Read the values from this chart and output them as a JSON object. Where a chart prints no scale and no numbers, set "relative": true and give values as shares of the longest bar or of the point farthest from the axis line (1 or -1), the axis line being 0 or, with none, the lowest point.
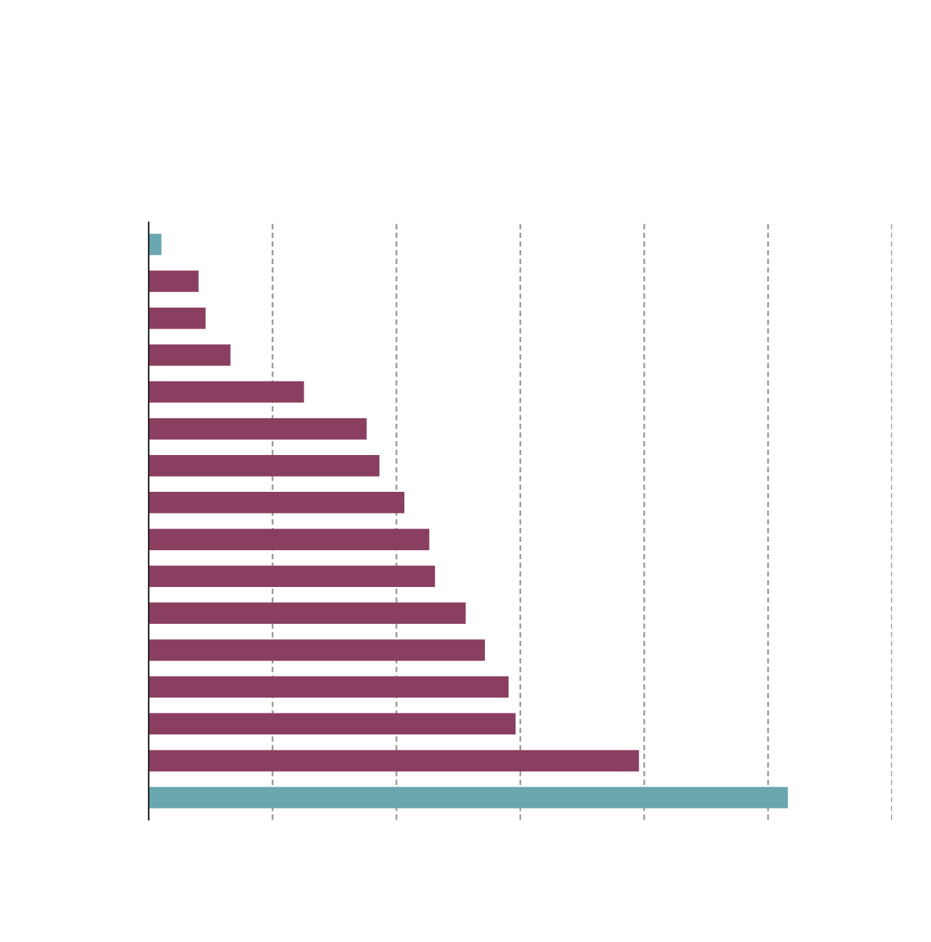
{
  "chart_data": {
    "type": "bar",
    "orientation": "horizontal",
    "relative": true,
    "categories": [
      null,
      null,
      null,
      null,
      null,
      null,
      null,
      null,
      null,
      null,
      null,
      null,
      null,
      null,
      null,
      null
    ],
    "values": [
      0.02,
      0.078,
      0.089,
      0.128,
      0.243,
      0.341,
      0.361,
      0.4,
      0.439,
      0.448,
      0.496,
      0.526,
      0.563,
      0.574,
      0.767,
      1
    ],
    "colors": [
      "#6aa8b0",
      "#8b3f60",
      "#8b3f60",
      "#8b3f60",
      "#8b3f60",
      "#8b3f60",
      "#8b3f60",
      "#8b3f60",
      "#8b3f60",
      "#8b3f60",
      "#8b3f60",
      "#8b3f60",
      "#8b3f60",
      "#8b3f60",
      "#8b3f60",
      "#6aa8b0"
    ],
    "grid": "x"
  }
}
